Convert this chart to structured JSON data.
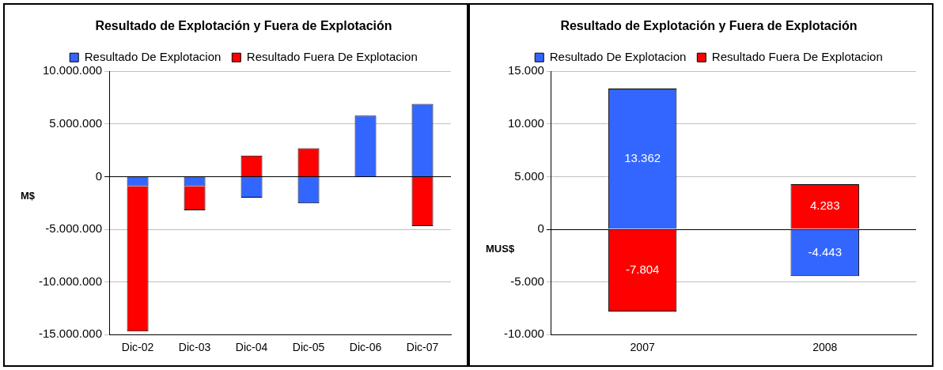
{
  "chart_data": [
    {
      "type": "bar",
      "title": "Resultado de Explotación y Fuera de Explotación",
      "ylabel": "M$",
      "categories": [
        "Dic-02",
        "Dic-03",
        "Dic-04",
        "Dic-05",
        "Dic-06",
        "Dic-07"
      ],
      "stacked": true,
      "legend": "top",
      "grid": "y",
      "series": [
        {
          "name": "Resultado De Explotacion",
          "color": "#3366ff",
          "values": [
            -900000,
            -900000,
            -2000000,
            -2550000,
            5800000,
            6900000
          ]
        },
        {
          "name": "Resultado Fuera De Explotacion",
          "color": "#ff0000",
          "values": [
            -13800000,
            -2300000,
            2000000,
            2700000,
            null,
            -4700000
          ]
        }
      ],
      "ylim": [
        -15000000,
        10000000
      ],
      "yticks": [
        {
          "value": -15000000,
          "label": "-15.000.000"
        },
        {
          "value": -10000000,
          "label": "-10.000.000"
        },
        {
          "value": -5000000,
          "label": "-5.000.000"
        },
        {
          "value": 0,
          "label": "0"
        },
        {
          "value": 5000000,
          "label": "5.000.000"
        },
        {
          "value": 10000000,
          "label": "10.000.000"
        }
      ]
    },
    {
      "type": "bar",
      "title": "Resultado de Explotación y Fuera de Explotación",
      "ylabel": "MUS$",
      "categories": [
        "2007",
        "2008"
      ],
      "stacked": true,
      "legend": "top",
      "grid": "y",
      "series": [
        {
          "name": "Resultado De Explotacion",
          "color": "#3366ff",
          "values": [
            13362,
            -4443
          ],
          "value_labels": [
            "13.362",
            "-4.443"
          ]
        },
        {
          "name": "Resultado Fuera De Explotacion",
          "color": "#ff0000",
          "values": [
            -7804,
            4283
          ],
          "value_labels": [
            "-7.804",
            "4.283"
          ]
        }
      ],
      "ylim": [
        -10000,
        15000
      ],
      "yticks": [
        {
          "value": -10000,
          "label": "-10.000"
        },
        {
          "value": -5000,
          "label": "-5.000"
        },
        {
          "value": 0,
          "label": "0"
        },
        {
          "value": 5000,
          "label": "5.000"
        },
        {
          "value": 10000,
          "label": "10.000"
        },
        {
          "value": 15000,
          "label": "15.000"
        }
      ]
    }
  ]
}
